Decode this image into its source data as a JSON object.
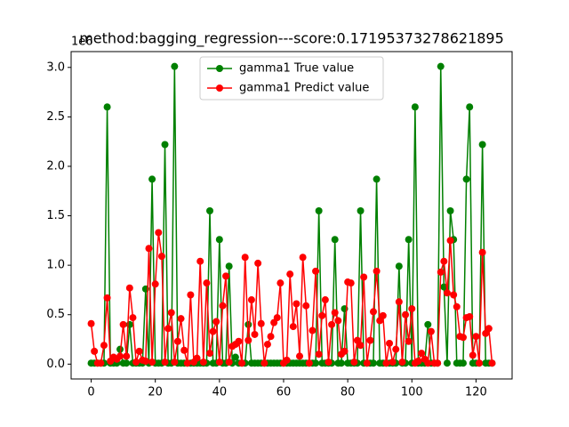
{
  "chart_data": {
    "type": "line",
    "title": "method:bagging_regression---score:0.17195373278621895",
    "y_offset_text": "1e6",
    "x": [
      0,
      1,
      2,
      3,
      4,
      5,
      6,
      7,
      8,
      9,
      10,
      11,
      12,
      13,
      14,
      15,
      16,
      17,
      18,
      19,
      20,
      21,
      22,
      23,
      24,
      25,
      26,
      27,
      28,
      29,
      30,
      31,
      32,
      33,
      34,
      35,
      36,
      37,
      38,
      39,
      40,
      41,
      42,
      43,
      44,
      45,
      46,
      47,
      48,
      49,
      50,
      51,
      52,
      53,
      54,
      55,
      56,
      57,
      58,
      59,
      60,
      61,
      62,
      63,
      64,
      65,
      66,
      67,
      68,
      69,
      70,
      71,
      72,
      73,
      74,
      75,
      76,
      77,
      78,
      79,
      80,
      81,
      82,
      83,
      84,
      85,
      86,
      87,
      88,
      89,
      90,
      91,
      92,
      93,
      94,
      95,
      96,
      97,
      98,
      99,
      100,
      101,
      102,
      103,
      104,
      105,
      106,
      107,
      108,
      109,
      110,
      111,
      112,
      113,
      114,
      115,
      116,
      117,
      118,
      119,
      120,
      121,
      122,
      123,
      124,
      125
    ],
    "series": [
      {
        "name": "gamma1 True value",
        "color": "#008000",
        "values": [
          0.01,
          0.01,
          0.01,
          0.01,
          0.01,
          2.6,
          0.01,
          0.01,
          0.01,
          0.15,
          0.01,
          0.01,
          0.4,
          0.01,
          0.01,
          0.01,
          0.01,
          0.76,
          0.01,
          1.87,
          0.01,
          0.01,
          0.01,
          2.22,
          0.01,
          0.01,
          3.01,
          0.01,
          0.01,
          0.01,
          0.01,
          0.01,
          0.01,
          0.01,
          0.01,
          0.01,
          0.01,
          1.55,
          0.01,
          0.01,
          1.26,
          0.01,
          0.01,
          0.99,
          0.01,
          0.07,
          0.01,
          0.01,
          0.01,
          0.4,
          0.01,
          0.01,
          0.01,
          0.01,
          0.01,
          0.01,
          0.01,
          0.01,
          0.01,
          0.01,
          0.01,
          0.01,
          0.01,
          0.01,
          0.01,
          0.01,
          0.01,
          0.01,
          0.01,
          0.01,
          0.01,
          1.55,
          0.01,
          0.01,
          0.01,
          0.01,
          1.26,
          0.01,
          0.01,
          0.56,
          0.01,
          0.01,
          0.01,
          0.01,
          1.55,
          0.01,
          0.01,
          0.01,
          0.01,
          1.87,
          0.01,
          0.01,
          0.01,
          0.01,
          0.01,
          0.01,
          0.99,
          0.01,
          0.01,
          1.26,
          0.01,
          2.6,
          0.01,
          0.01,
          0.01,
          0.4,
          0.01,
          0.01,
          0.01,
          3.01,
          0.78,
          0.01,
          1.55,
          1.26,
          0.01,
          0.01,
          0.01,
          1.87,
          2.6,
          0.01,
          0.01,
          0.01,
          2.22,
          0.01,
          0.01,
          0.01
        ]
      },
      {
        "name": "gamma1 Predict value",
        "color": "#ff0000",
        "values": [
          0.41,
          0.13,
          0.01,
          0.01,
          0.19,
          0.67,
          0.03,
          0.07,
          0.05,
          0.08,
          0.4,
          0.08,
          0.77,
          0.47,
          0.02,
          0.13,
          0.04,
          0.03,
          1.17,
          0.02,
          0.81,
          1.33,
          1.09,
          0.02,
          0.36,
          0.52,
          0.02,
          0.23,
          0.46,
          0.14,
          0.01,
          0.7,
          0.02,
          0.06,
          1.04,
          0.02,
          0.82,
          0.11,
          0.33,
          0.43,
          0.02,
          0.59,
          0.89,
          0.02,
          0.18,
          0.2,
          0.23,
          0.01,
          1.08,
          0.24,
          0.65,
          0.3,
          1.02,
          0.41,
          0.01,
          0.2,
          0.28,
          0.42,
          0.47,
          0.82,
          0.01,
          0.04,
          0.91,
          0.38,
          0.61,
          0.08,
          1.08,
          0.59,
          0.01,
          0.34,
          0.94,
          0.1,
          0.49,
          0.65,
          0.02,
          0.4,
          0.52,
          0.44,
          0.1,
          0.13,
          0.83,
          0.82,
          0.02,
          0.24,
          0.19,
          0.88,
          0.01,
          0.24,
          0.53,
          0.94,
          0.44,
          0.49,
          0.01,
          0.21,
          0.02,
          0.15,
          0.63,
          0.02,
          0.5,
          0.23,
          0.56,
          0.01,
          0.03,
          0.11,
          0.05,
          0.01,
          0.33,
          0.01,
          0.01,
          0.93,
          1.04,
          0.72,
          1.25,
          0.7,
          0.58,
          0.28,
          0.27,
          0.47,
          0.48,
          0.09,
          0.28,
          0.01,
          1.13,
          0.31,
          0.36,
          0.01
        ]
      }
    ],
    "xlim": [
      -6.25,
      131.25
    ],
    "xticks": [
      0,
      20,
      40,
      60,
      80,
      100,
      120
    ],
    "ylim": [
      -0.15,
      3.16
    ],
    "yticks": [
      {
        "value": 0,
        "label": "0.0"
      },
      0.5,
      {
        "value": 1,
        "label": "1.0"
      },
      1.5,
      {
        "value": 2,
        "label": "2.0"
      },
      2.5,
      {
        "value": 3,
        "label": "3.0"
      }
    ],
    "legend": "upper center",
    "marker": "circle"
  }
}
